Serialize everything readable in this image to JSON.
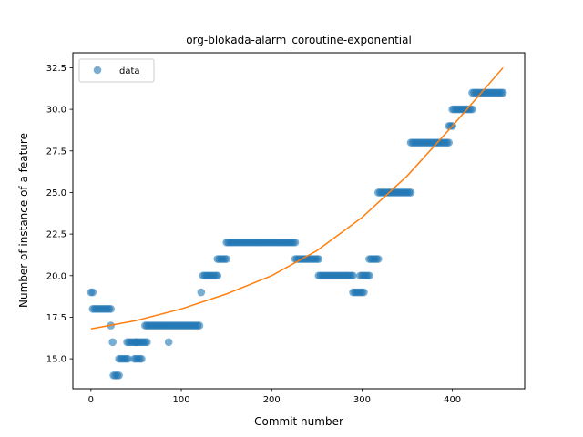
{
  "chart_data": {
    "type": "scatter",
    "title": "org-blokada-alarm_coroutine-exponential",
    "xlabel": "Commit number",
    "ylabel": "Number of instance of a feature",
    "xlim": [
      -20,
      480
    ],
    "ylim": [
      13.2,
      33.4
    ],
    "x_ticks": [
      0,
      100,
      200,
      300,
      400
    ],
    "y_ticks": [
      15.0,
      17.5,
      20.0,
      22.5,
      25.0,
      27.5,
      30.0,
      32.5
    ],
    "x_tick_labels": [
      "0",
      "100",
      "200",
      "300",
      "400"
    ],
    "y_tick_labels": [
      "15.0",
      "17.5",
      "20.0",
      "22.5",
      "25.0",
      "27.5",
      "30.0",
      "32.5"
    ],
    "legend": {
      "position": "upper-left",
      "entries": [
        "data"
      ]
    },
    "grid": false,
    "colors": {
      "points": "#1f77b4",
      "fit": "#ff7f0e"
    },
    "series": [
      {
        "name": "data",
        "kind": "points",
        "segments": [
          {
            "x_start": 0,
            "x_end": 2,
            "y": 19
          },
          {
            "x_start": 2,
            "x_end": 22,
            "y": 18
          },
          {
            "x_start": 22,
            "x_end": 23,
            "y": 17
          },
          {
            "x_start": 24,
            "x_end": 25,
            "y": 16
          },
          {
            "x_start": 25,
            "x_end": 31,
            "y": 14
          },
          {
            "x_start": 31,
            "x_end": 42,
            "y": 15
          },
          {
            "x_start": 40,
            "x_end": 50,
            "y": 16
          },
          {
            "x_start": 48,
            "x_end": 56,
            "y": 15
          },
          {
            "x_start": 50,
            "x_end": 62,
            "y": 16
          },
          {
            "x_start": 60,
            "x_end": 120,
            "y": 17
          },
          {
            "x_start": 86,
            "x_end": 86,
            "y": 16
          },
          {
            "x_start": 122,
            "x_end": 122,
            "y": 19
          },
          {
            "x_start": 124,
            "x_end": 140,
            "y": 20
          },
          {
            "x_start": 140,
            "x_end": 150,
            "y": 21
          },
          {
            "x_start": 150,
            "x_end": 226,
            "y": 22
          },
          {
            "x_start": 226,
            "x_end": 252,
            "y": 21
          },
          {
            "x_start": 252,
            "x_end": 290,
            "y": 20
          },
          {
            "x_start": 290,
            "x_end": 302,
            "y": 19
          },
          {
            "x_start": 298,
            "x_end": 308,
            "y": 20
          },
          {
            "x_start": 308,
            "x_end": 318,
            "y": 21
          },
          {
            "x_start": 318,
            "x_end": 354,
            "y": 25
          },
          {
            "x_start": 354,
            "x_end": 396,
            "y": 28
          },
          {
            "x_start": 396,
            "x_end": 400,
            "y": 29
          },
          {
            "x_start": 400,
            "x_end": 422,
            "y": 30
          },
          {
            "x_start": 422,
            "x_end": 456,
            "y": 31
          }
        ]
      },
      {
        "name": "",
        "kind": "line",
        "x": [
          0,
          50,
          100,
          150,
          200,
          250,
          300,
          350,
          400,
          456
        ],
        "y": [
          16.8,
          17.3,
          18.0,
          18.9,
          20.0,
          21.5,
          23.5,
          26.0,
          29.0,
          32.5
        ]
      }
    ]
  }
}
